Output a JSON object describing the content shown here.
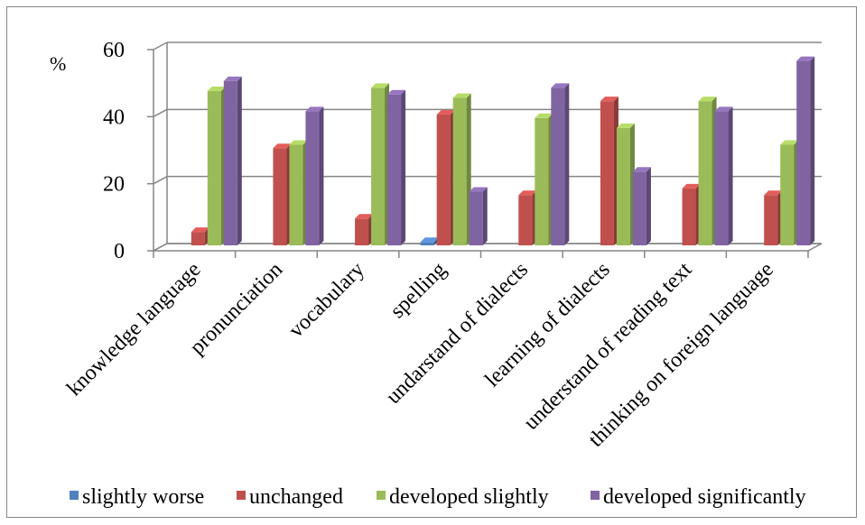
{
  "chart_data": {
    "type": "bar",
    "unit_label": "%",
    "categories": [
      "knowledge language",
      "pronunciation",
      "vocabulary",
      "spelling",
      "undarstand of dialects",
      "learning of dialects",
      "understand of reading text",
      "thinking on foreign language"
    ],
    "series": [
      {
        "name": "slightly worse",
        "color": "#4f81bd",
        "values": [
          0,
          0,
          0,
          1,
          0,
          0,
          0,
          0
        ]
      },
      {
        "name": "unchanged",
        "color": "#c0504d",
        "values": [
          4,
          29,
          8,
          39,
          15,
          43,
          17,
          15
        ]
      },
      {
        "name": "developed slightly",
        "color": "#9bbb59",
        "values": [
          46,
          30,
          47,
          44,
          38,
          35,
          43,
          30
        ]
      },
      {
        "name": "developed significantly",
        "color": "#8064a2",
        "values": [
          49,
          40,
          45,
          16,
          47,
          22,
          40,
          55
        ]
      }
    ],
    "y_ticks": [
      0,
      20,
      40,
      60
    ],
    "ylim": [
      0,
      60
    ],
    "grid": true,
    "legend_position": "bottom"
  }
}
